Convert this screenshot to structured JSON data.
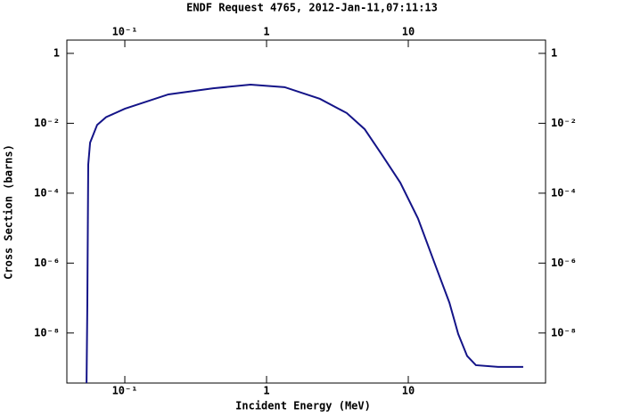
{
  "chart_data": {
    "type": "line",
    "title": "ENDF Request 4765, 2012-Jan-11,07:11:13",
    "x_label": "Incident Energy (MeV)",
    "y_label": "Cross Section (barns)",
    "log_x": true,
    "log_y": true,
    "grid": false,
    "xlim": [
      0.039,
      93
    ],
    "ylim": [
      3.7e-10,
      2.4
    ],
    "xticks": [
      {
        "value": 0.1,
        "label": "10⁻¹"
      },
      1,
      10
    ],
    "yticks": [
      1,
      {
        "value": 0.01,
        "label": "10⁻²"
      },
      {
        "value": 0.0001,
        "label": "10⁻⁴"
      },
      {
        "value": 1e-06,
        "label": "10⁻⁶"
      },
      {
        "value": 1e-08,
        "label": "10⁻⁸"
      }
    ],
    "x": [
      0.0537,
      0.0544,
      0.0552,
      0.0569,
      0.0638,
      0.0738,
      0.1,
      0.203,
      0.42,
      0.77,
      1.34,
      2.38,
      3.68,
      4.92,
      6.57,
      8.78,
      11.7,
      15.7,
      19.5,
      22.5,
      26,
      30,
      43,
      64.7
    ],
    "series": [
      {
        "name": "Cross Section",
        "color": "#141488",
        "values": [
          3.7e-10,
          7e-08,
          0.00066,
          0.0028,
          0.009,
          0.015,
          0.026,
          0.067,
          0.1,
          0.128,
          0.108,
          0.05,
          0.0196,
          0.0068,
          0.0012,
          0.0002,
          1.9e-05,
          7.7e-07,
          7.4e-08,
          9.4e-09,
          2.2e-09,
          1.2e-09,
          1.07e-09,
          1.07e-09
        ]
      }
    ]
  }
}
